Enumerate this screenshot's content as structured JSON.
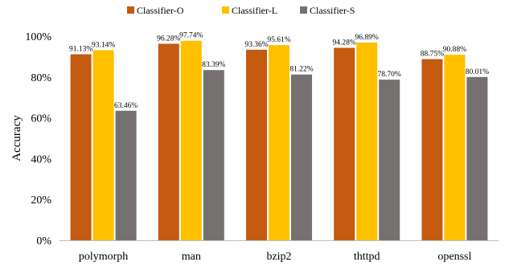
{
  "chart_data": {
    "type": "bar",
    "title": "",
    "xlabel": "",
    "ylabel": "Accuracy",
    "ylim": [
      0,
      100
    ],
    "yticks": [
      "0%",
      "20%",
      "40%",
      "60%",
      "80%",
      "100%"
    ],
    "grid": false,
    "legend_position": "top-center",
    "categories": [
      "polymorph",
      "man",
      "bzip2",
      "thttpd",
      "openssl"
    ],
    "series": [
      {
        "name": "Classifier-O",
        "color": "#C55A11",
        "values": [
          91.13,
          96.28,
          93.36,
          94.28,
          88.75
        ],
        "labels": [
          "91.13%",
          "96.28%",
          "93.36%",
          "94.28%",
          "88.75%"
        ]
      },
      {
        "name": "Classifier-L",
        "color": "#FFC000",
        "values": [
          93.14,
          97.74,
          95.61,
          96.89,
          90.88
        ],
        "labels": [
          "93.14%",
          "97.74%",
          "95.61%",
          "96.89%",
          "90.88%"
        ]
      },
      {
        "name": "Classifier-S",
        "color": "#767171",
        "values": [
          63.46,
          83.39,
          81.22,
          78.7,
          80.01
        ],
        "labels": [
          "63.46%",
          "83.39%",
          "81.22%",
          "78.70%",
          "80.01%"
        ]
      }
    ]
  }
}
